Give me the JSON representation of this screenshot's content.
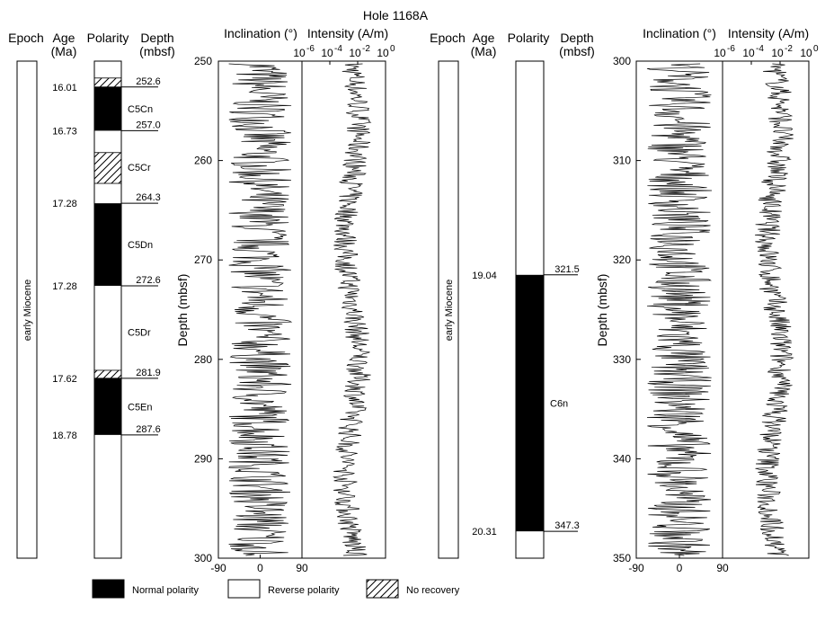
{
  "title": "Hole 1168A",
  "headers": {
    "epoch": "Epoch",
    "age": "Age",
    "age_unit": "(Ma)",
    "polarity": "Polarity",
    "depth": "Depth",
    "depth_unit": "(mbsf)",
    "inclination": "Inclination (°)",
    "intensity": "Intensity (A/m)"
  },
  "depth_axis_label": "Depth (mbsf)",
  "epoch_label": "early Miocene",
  "legend": [
    {
      "key": "normal",
      "label": "Normal polarity"
    },
    {
      "key": "reverse",
      "label": "Reverse polarity"
    },
    {
      "key": "norecovery",
      "label": "No recovery"
    }
  ],
  "panels": [
    {
      "id": "upper",
      "depth_range": [
        250,
        300
      ],
      "depth_ticks": [
        "250",
        "260",
        "270",
        "280",
        "290",
        "300"
      ],
      "depth_tick_values": [
        250,
        260,
        270,
        280,
        290,
        300
      ],
      "incl_ticks": [
        "-90",
        "0",
        "90"
      ],
      "int_ticks": [
        "10",
        "10",
        "10",
        "10"
      ],
      "int_exps": [
        "-6",
        "-4",
        "-2",
        "0"
      ],
      "chrons": [
        {
          "name": "C5Cn",
          "top": 252.6,
          "bottom": 257.0
        },
        {
          "name": "C5Cr",
          "top": 257.0,
          "bottom": 264.3
        },
        {
          "name": "C5Dn",
          "top": 264.3,
          "bottom": 272.6
        },
        {
          "name": "C5Dr",
          "top": 272.6,
          "bottom": 281.9
        },
        {
          "name": "C5En",
          "top": 281.9,
          "bottom": 287.6
        }
      ],
      "polarity_blocks": [
        {
          "type": "norecovery",
          "top": 251.7,
          "bottom": 252.6
        },
        {
          "type": "normal",
          "top": 252.6,
          "bottom": 257.0
        },
        {
          "type": "norecovery",
          "top": 259.2,
          "bottom": 262.3
        },
        {
          "type": "normal",
          "top": 264.3,
          "bottom": 272.6
        },
        {
          "type": "norecovery",
          "top": 281.1,
          "bottom": 281.9
        },
        {
          "type": "normal",
          "top": 281.9,
          "bottom": 287.6
        }
      ],
      "boundaries": [
        {
          "age": "16.01",
          "depth": "252.6",
          "value": 252.6
        },
        {
          "age": "16.73",
          "depth": "257.0",
          "value": 257.0
        },
        {
          "age": "17.28",
          "depth": "264.3",
          "value": 264.3
        },
        {
          "age": "17.28",
          "depth": "272.6",
          "value": 272.6
        },
        {
          "age": "17.62",
          "depth": "281.9",
          "value": 281.9
        },
        {
          "age": "18.78",
          "depth": "287.6",
          "value": 287.6
        }
      ]
    },
    {
      "id": "lower",
      "depth_range": [
        300,
        350
      ],
      "depth_ticks": [
        "300",
        "310",
        "320",
        "330",
        "340",
        "350"
      ],
      "depth_tick_values": [
        300,
        310,
        320,
        330,
        340,
        350
      ],
      "incl_ticks": [
        "-90",
        "0",
        "90"
      ],
      "int_ticks": [
        "10",
        "10",
        "10",
        "10"
      ],
      "int_exps": [
        "-6",
        "-4",
        "-2",
        "0"
      ],
      "chrons": [
        {
          "name": "C6n",
          "top": 321.5,
          "bottom": 347.3
        }
      ],
      "polarity_blocks": [
        {
          "type": "normal",
          "top": 321.5,
          "bottom": 347.3
        }
      ],
      "boundaries": [
        {
          "age": "19.04",
          "depth": "321.5",
          "value": 321.5
        },
        {
          "age": "20.31",
          "depth": "347.3",
          "value": 347.3
        }
      ]
    }
  ]
}
